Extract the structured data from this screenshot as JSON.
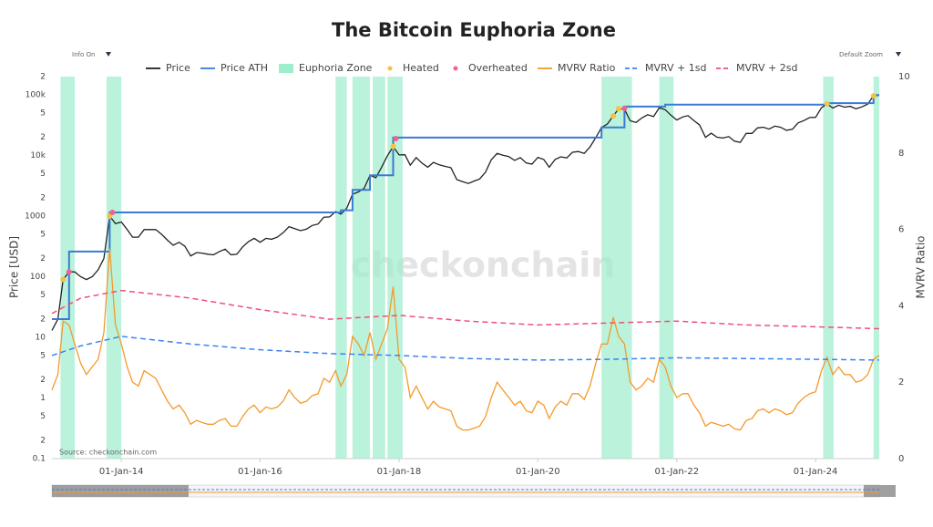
{
  "chart_data": {
    "type": "line",
    "title": "The Bitcoin Euphoria Zone",
    "info_toggle": "Info On",
    "zoom_toggle": "Default Zoom",
    "source": "Source: checkonchain.com",
    "watermark": "checkonchain",
    "ylabel": "Price [USD]",
    "y2label": "MVRV Ratio",
    "log_y": true,
    "grid": false,
    "legend": "top",
    "xlim": [
      "2013-01-01",
      "2024-12-01"
    ],
    "xticks": [
      {
        "value": "2014-01-01",
        "label": "01-Jan-14"
      },
      {
        "value": "2016-01-01",
        "label": "01-Jan-16"
      },
      {
        "value": "2018-01-01",
        "label": "01-Jan-18"
      },
      {
        "value": "2020-01-01",
        "label": "01-Jan-20"
      },
      {
        "value": "2022-01-01",
        "label": "01-Jan-22"
      },
      {
        "value": "2024-01-01",
        "label": "01-Jan-24"
      }
    ],
    "ylim": [
      0.1,
      200000
    ],
    "yticks": [
      0.1,
      {
        "value": 0.2,
        "label": "2"
      },
      {
        "value": 0.5,
        "label": "5"
      },
      1,
      {
        "value": 2,
        "label": "2"
      },
      {
        "value": 5,
        "label": "5"
      },
      10,
      {
        "value": 20,
        "label": "2"
      },
      {
        "value": 50,
        "label": "5"
      },
      100,
      {
        "value": 200,
        "label": "2"
      },
      {
        "value": 500,
        "label": "5"
      },
      1000,
      {
        "value": 2000,
        "label": "2"
      },
      {
        "value": 5000,
        "label": "5"
      },
      {
        "value": 10000,
        "label": "10k"
      },
      {
        "value": 20000,
        "label": "2"
      },
      {
        "value": 50000,
        "label": "5"
      },
      {
        "value": 100000,
        "label": "100k"
      },
      {
        "value": 200000,
        "label": "2"
      }
    ],
    "y2lim": [
      0,
      10
    ],
    "y2ticks": [
      0,
      2,
      4,
      6,
      8,
      10
    ],
    "x": [
      "2013-01-01",
      "2013-02-01",
      "2013-03-01",
      "2013-04-01",
      "2013-05-01",
      "2013-06-01",
      "2013-07-01",
      "2013-08-01",
      "2013-09-01",
      "2013-10-01",
      "2013-11-01",
      "2013-12-01",
      "2014-01-01",
      "2014-02-01",
      "2014-03-01",
      "2014-04-01",
      "2014-05-01",
      "2014-06-01",
      "2014-07-01",
      "2014-08-01",
      "2014-09-01",
      "2014-10-01",
      "2014-11-01",
      "2014-12-01",
      "2015-01-01",
      "2015-02-01",
      "2015-03-01",
      "2015-04-01",
      "2015-05-01",
      "2015-06-01",
      "2015-07-01",
      "2015-08-01",
      "2015-09-01",
      "2015-10-01",
      "2015-11-01",
      "2015-12-01",
      "2016-01-01",
      "2016-02-01",
      "2016-03-01",
      "2016-04-01",
      "2016-05-01",
      "2016-06-01",
      "2016-07-01",
      "2016-08-01",
      "2016-09-01",
      "2016-10-01",
      "2016-11-01",
      "2016-12-01",
      "2017-01-01",
      "2017-02-01",
      "2017-03-01",
      "2017-04-01",
      "2017-05-01",
      "2017-06-01",
      "2017-07-01",
      "2017-08-01",
      "2017-09-01",
      "2017-10-01",
      "2017-11-01",
      "2017-12-01",
      "2018-01-01",
      "2018-02-01",
      "2018-03-01",
      "2018-04-01",
      "2018-05-01",
      "2018-06-01",
      "2018-07-01",
      "2018-08-01",
      "2018-09-01",
      "2018-10-01",
      "2018-11-01",
      "2018-12-01",
      "2019-01-01",
      "2019-02-01",
      "2019-03-01",
      "2019-04-01",
      "2019-05-01",
      "2019-06-01",
      "2019-07-01",
      "2019-08-01",
      "2019-09-01",
      "2019-10-01",
      "2019-11-01",
      "2019-12-01",
      "2020-01-01",
      "2020-02-01",
      "2020-03-01",
      "2020-04-01",
      "2020-05-01",
      "2020-06-01",
      "2020-07-01",
      "2020-08-01",
      "2020-09-01",
      "2020-10-01",
      "2020-11-01",
      "2020-12-01",
      "2021-01-01",
      "2021-02-01",
      "2021-03-01",
      "2021-04-01",
      "2021-05-01",
      "2021-06-01",
      "2021-07-01",
      "2021-08-01",
      "2021-09-01",
      "2021-10-01",
      "2021-11-01",
      "2021-12-01",
      "2022-01-01",
      "2022-02-01",
      "2022-03-01",
      "2022-04-01",
      "2022-05-01",
      "2022-06-01",
      "2022-07-01",
      "2022-08-01",
      "2022-09-01",
      "2022-10-01",
      "2022-11-01",
      "2022-12-01",
      "2023-01-01",
      "2023-02-01",
      "2023-03-01",
      "2023-04-01",
      "2023-05-01",
      "2023-06-01",
      "2023-07-01",
      "2023-08-01",
      "2023-09-01",
      "2023-10-01",
      "2023-11-01",
      "2023-12-01",
      "2024-01-01",
      "2024-02-01",
      "2024-03-01",
      "2024-04-01",
      "2024-05-01",
      "2024-06-01",
      "2024-07-01",
      "2024-08-01",
      "2024-09-01",
      "2024-10-01",
      "2024-11-01",
      "2024-12-01"
    ],
    "series": [
      {
        "name": "Price",
        "color": "#222222",
        "kind": "line",
        "axis": "y",
        "values": [
          13,
          20,
          90,
          120,
          120,
          100,
          90,
          100,
          130,
          200,
          1000,
          750,
          800,
          600,
          450,
          450,
          600,
          600,
          600,
          500,
          400,
          330,
          370,
          320,
          220,
          250,
          245,
          235,
          230,
          260,
          285,
          230,
          235,
          310,
          380,
          430,
          370,
          430,
          415,
          450,
          530,
          670,
          620,
          575,
          610,
          700,
          740,
          960,
          970,
          1190,
          1080,
          1350,
          2300,
          2500,
          2870,
          4700,
          4300,
          6400,
          9900,
          14000,
          10200,
          10300,
          6900,
          9200,
          7500,
          6400,
          7700,
          7000,
          6600,
          6300,
          4000,
          3700,
          3450,
          3800,
          4100,
          5300,
          8500,
          10800,
          10100,
          9600,
          8300,
          9200,
          7500,
          7200,
          9300,
          8600,
          6400,
          8600,
          9500,
          9100,
          11300,
          11600,
          10800,
          13800,
          19700,
          29000,
          33000,
          45000,
          58800,
          57700,
          37300,
          35000,
          41500,
          47100,
          43800,
          61300,
          57000,
          46300,
          38500,
          43200,
          45500,
          37700,
          31800,
          19900,
          23300,
          20000,
          19400,
          20500,
          17200,
          16500,
          23100,
          23100,
          28500,
          29300,
          27200,
          30500,
          29200,
          26000,
          27000,
          34500,
          37700,
          42300,
          42600,
          61200,
          71300,
          60600,
          67500,
          62700,
          64600,
          59000,
          63300,
          70200,
          96400,
          98000
        ]
      },
      {
        "name": "Price ATH",
        "color": "#3a7bd5",
        "kind": "step",
        "axis": "y",
        "x": [
          "2013-01-01",
          "2013-04-01",
          "2013-11-01",
          "2017-03-01",
          "2017-05-01",
          "2017-08-01",
          "2017-12-01",
          "2020-12-01",
          "2021-04-01",
          "2021-11-01",
          "2024-03-01",
          "2024-11-01",
          "2024-12-01"
        ],
        "values": [
          20,
          260,
          1150,
          1250,
          2700,
          4700,
          19700,
          29000,
          64000,
          69000,
          73000,
          99000,
          99000
        ]
      },
      {
        "name": "Euphoria Zone",
        "color": "#9eedcc",
        "kind": "zones",
        "ranges": [
          [
            "2013-02-15",
            "2013-05-01"
          ],
          [
            "2013-10-15",
            "2014-01-01"
          ],
          [
            "2017-02-01",
            "2017-04-01"
          ],
          [
            "2017-05-01",
            "2017-08-01"
          ],
          [
            "2017-08-15",
            "2017-10-20"
          ],
          [
            "2017-11-01",
            "2018-01-20"
          ],
          [
            "2020-12-01",
            "2021-05-10"
          ],
          [
            "2021-10-01",
            "2021-12-15"
          ],
          [
            "2024-02-10",
            "2024-04-05"
          ],
          [
            "2024-11-01",
            "2024-12-01"
          ]
        ]
      },
      {
        "name": "Heated",
        "color": "#f5c242",
        "kind": "scatter",
        "axis": "y",
        "x": [
          "2013-03-01",
          "2013-11-01",
          "2017-12-01",
          "2021-02-01",
          "2021-03-01",
          "2024-03-01",
          "2024-11-01"
        ],
        "values": [
          90,
          1000,
          14000,
          45000,
          58800,
          71300,
          96400
        ]
      },
      {
        "name": "Overheated",
        "color": "#f06292",
        "kind": "scatter",
        "axis": "y",
        "x": [
          "2013-04-01",
          "2013-11-15",
          "2017-12-15",
          "2021-04-01"
        ],
        "values": [
          120,
          1150,
          19000,
          60000
        ]
      },
      {
        "name": "MVRV Ratio",
        "color": "#f39a2b",
        "kind": "line",
        "axis": "y2",
        "values": [
          1.8,
          2.2,
          3.6,
          3.5,
          3.0,
          2.5,
          2.2,
          2.4,
          2.6,
          3.3,
          5.5,
          3.5,
          3.0,
          2.4,
          2.0,
          1.9,
          2.3,
          2.2,
          2.1,
          1.8,
          1.5,
          1.3,
          1.4,
          1.2,
          0.9,
          1.0,
          0.95,
          0.9,
          0.9,
          1.0,
          1.05,
          0.85,
          0.85,
          1.1,
          1.3,
          1.4,
          1.2,
          1.35,
          1.3,
          1.35,
          1.5,
          1.8,
          1.6,
          1.45,
          1.5,
          1.65,
          1.7,
          2.1,
          2.0,
          2.3,
          1.9,
          2.2,
          3.2,
          3.0,
          2.7,
          3.3,
          2.6,
          3.0,
          3.4,
          4.5,
          2.6,
          2.4,
          1.6,
          1.9,
          1.6,
          1.3,
          1.5,
          1.35,
          1.3,
          1.25,
          0.85,
          0.75,
          0.75,
          0.8,
          0.85,
          1.1,
          1.6,
          2.0,
          1.8,
          1.6,
          1.4,
          1.5,
          1.25,
          1.2,
          1.5,
          1.4,
          1.05,
          1.35,
          1.5,
          1.4,
          1.7,
          1.7,
          1.55,
          1.9,
          2.5,
          3.0,
          3.0,
          3.7,
          3.2,
          3.0,
          2.0,
          1.8,
          1.9,
          2.1,
          2.0,
          2.6,
          2.4,
          1.9,
          1.6,
          1.7,
          1.7,
          1.4,
          1.2,
          0.85,
          0.95,
          0.9,
          0.85,
          0.9,
          0.78,
          0.75,
          1.0,
          1.05,
          1.25,
          1.3,
          1.2,
          1.3,
          1.25,
          1.15,
          1.2,
          1.45,
          1.6,
          1.7,
          1.75,
          2.3,
          2.65,
          2.2,
          2.4,
          2.2,
          2.2,
          2.0,
          2.05,
          2.2,
          2.6,
          2.7
        ]
      },
      {
        "name": "MVRV + 1sd",
        "color": "#3b82f6",
        "kind": "line",
        "dashed": true,
        "axis": "y2",
        "x": [
          "2013-01-01",
          "2013-06-01",
          "2014-01-01",
          "2015-01-01",
          "2016-01-01",
          "2017-01-01",
          "2018-01-01",
          "2019-01-01",
          "2020-01-01",
          "2021-01-01",
          "2022-01-01",
          "2023-01-01",
          "2024-01-01",
          "2024-12-01"
        ],
        "values": [
          2.7,
          2.95,
          3.2,
          3.0,
          2.85,
          2.75,
          2.7,
          2.62,
          2.58,
          2.6,
          2.64,
          2.62,
          2.6,
          2.58
        ]
      },
      {
        "name": "MVRV + 2sd",
        "color": "#f0507a",
        "kind": "line",
        "dashed": true,
        "axis": "y2",
        "x": [
          "2013-01-01",
          "2013-06-01",
          "2014-01-01",
          "2015-01-01",
          "2016-01-01",
          "2017-01-01",
          "2018-01-01",
          "2019-01-01",
          "2020-01-01",
          "2021-01-01",
          "2022-01-01",
          "2023-01-01",
          "2024-01-01",
          "2024-12-01"
        ],
        "values": [
          3.8,
          4.2,
          4.4,
          4.2,
          3.9,
          3.65,
          3.75,
          3.6,
          3.5,
          3.55,
          3.6,
          3.5,
          3.45,
          3.4
        ]
      }
    ]
  }
}
